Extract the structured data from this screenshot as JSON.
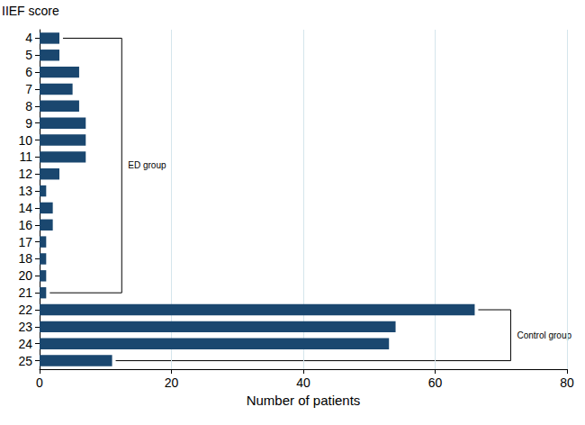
{
  "chart_data": {
    "type": "bar",
    "orientation": "horizontal",
    "categories": [
      "4",
      "5",
      "6",
      "7",
      "8",
      "9",
      "10",
      "11",
      "12",
      "13",
      "14",
      "16",
      "17",
      "18",
      "20",
      "21",
      "22",
      "23",
      "24",
      "25"
    ],
    "values": [
      3,
      3,
      6,
      5,
      6,
      7,
      7,
      7,
      3,
      1,
      2,
      2,
      1,
      1,
      1,
      1,
      66,
      54,
      53,
      11
    ],
    "color": "#1a476f",
    "xlabel": "Number of patients",
    "ylabel": "IIEF score",
    "xlim": [
      0,
      80
    ],
    "xticks": [
      0,
      20,
      40,
      60,
      80
    ],
    "grid": true,
    "annotations": [
      {
        "text": "ED group",
        "from": "4",
        "to": "21"
      },
      {
        "text": "Control group",
        "from": "22",
        "to": "25"
      }
    ]
  }
}
